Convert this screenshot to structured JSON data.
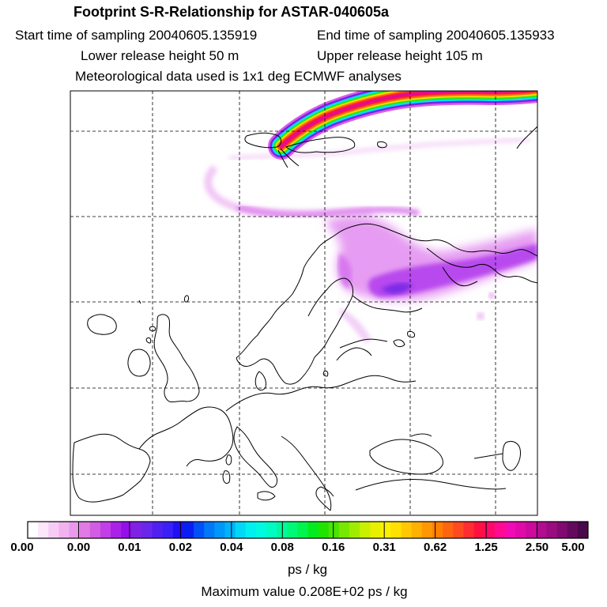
{
  "header": {
    "title": "Footprint S-R-Relationship for ASTAR-040605a",
    "start_time": "Start time of sampling 20040605.135919",
    "end_time": "End time of sampling 20040605.135933",
    "lower_height": "Lower release height   50 m",
    "upper_height": "Upper release height  105 m",
    "met_data": "Meteorological data used is 1x1 deg ECMWF analyses"
  },
  "colorbar": {
    "labels": [
      "0.00",
      "0.00",
      "0.01",
      "0.02",
      "0.04",
      "0.08",
      "0.16",
      "0.31",
      "0.62",
      "1.25",
      "2.50",
      "5.00"
    ],
    "unit": "ps / kg",
    "colors": [
      "#ffffff",
      "#fbe6fb",
      "#f6ccf6",
      "#f0b3f0",
      "#ea99ea",
      "#e07ae4",
      "#d35ce4",
      "#c23ee6",
      "#aa22e8",
      "#9410ea",
      "#7e22e6",
      "#6a26ea",
      "#5020f0",
      "#3a20f6",
      "#2010f8",
      "#0a1ef2",
      "#0050f8",
      "#0078f8",
      "#0096fa",
      "#00b4fa",
      "#00d8f8",
      "#00f0f0",
      "#00fae0",
      "#00fcc4",
      "#00fa9a",
      "#00f878",
      "#00f44e",
      "#00ec1e",
      "#20e400",
      "#4ce400",
      "#78e800",
      "#a0ec00",
      "#c8f000",
      "#e8f000",
      "#faf000",
      "#ffe000",
      "#ffc800",
      "#ffb000",
      "#ff9800",
      "#ff8000",
      "#ff6410",
      "#ff4a20",
      "#ff2c30",
      "#ff1040",
      "#ff0a6a",
      "#ff0a90",
      "#f20ab4",
      "#e00aa8",
      "#cc0a9c",
      "#b40a90",
      "#9a0a80",
      "#800a70",
      "#640a5e",
      "#480a4a"
    ]
  },
  "map": {
    "plume_colors": [
      "#d85ee8",
      "#7a22e8",
      "#00e0f8",
      "#30e800",
      "#ffd800",
      "#ff6a10",
      "#ff1a3a",
      "#e00a9a"
    ],
    "footprint_color": "#cc44ee",
    "footprint_dark": "#8a1ae6"
  },
  "footer": {
    "max_value": "Maximum value  0.208E+02 ps / kg"
  }
}
